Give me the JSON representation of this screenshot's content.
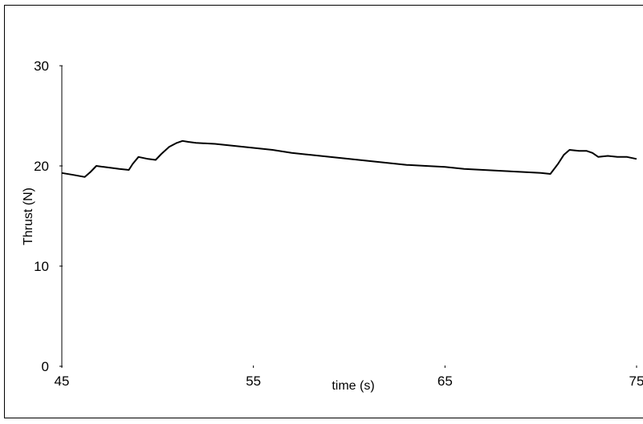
{
  "chart_data": {
    "type": "line",
    "title": "",
    "xlabel": "time (s)",
    "ylabel": "Thrust (N)",
    "xlim": [
      45,
      75
    ],
    "ylim": [
      0,
      30
    ],
    "x_ticks": [
      45,
      55,
      65,
      75
    ],
    "y_ticks": [
      0,
      10,
      20,
      30
    ],
    "x_tick_labels": [
      "45",
      "55",
      "65",
      "75"
    ],
    "y_tick_labels": [
      "0",
      "10",
      "20",
      "30"
    ],
    "grid": false,
    "legend": "none",
    "line_color": "#000000",
    "series": [
      {
        "x": [
          45.0,
          45.6,
          46.2,
          46.5,
          46.8,
          47.2,
          47.6,
          48.0,
          48.5,
          48.7,
          49.0,
          49.5,
          49.9,
          50.2,
          50.6,
          51.0,
          51.3,
          51.6,
          52.0,
          53.0,
          54.0,
          55.0,
          56.0,
          57.0,
          58.0,
          59.0,
          60.0,
          61.0,
          62.0,
          63.0,
          64.0,
          65.0,
          66.0,
          67.0,
          68.0,
          69.0,
          70.0,
          70.5,
          70.9,
          71.2,
          71.5,
          72.0,
          72.4,
          72.7,
          73.0,
          73.5,
          74.0,
          74.5,
          75.0
        ],
        "y": [
          19.3,
          19.1,
          18.9,
          19.4,
          20.0,
          19.9,
          19.8,
          19.7,
          19.6,
          20.2,
          20.9,
          20.7,
          20.6,
          21.2,
          21.9,
          22.3,
          22.5,
          22.4,
          22.3,
          22.2,
          22.0,
          21.8,
          21.6,
          21.3,
          21.1,
          20.9,
          20.7,
          20.5,
          20.3,
          20.1,
          20.0,
          19.9,
          19.7,
          19.6,
          19.5,
          19.4,
          19.3,
          19.2,
          20.2,
          21.1,
          21.6,
          21.5,
          21.5,
          21.3,
          20.9,
          21.0,
          20.9,
          20.9,
          20.7
        ]
      }
    ]
  }
}
